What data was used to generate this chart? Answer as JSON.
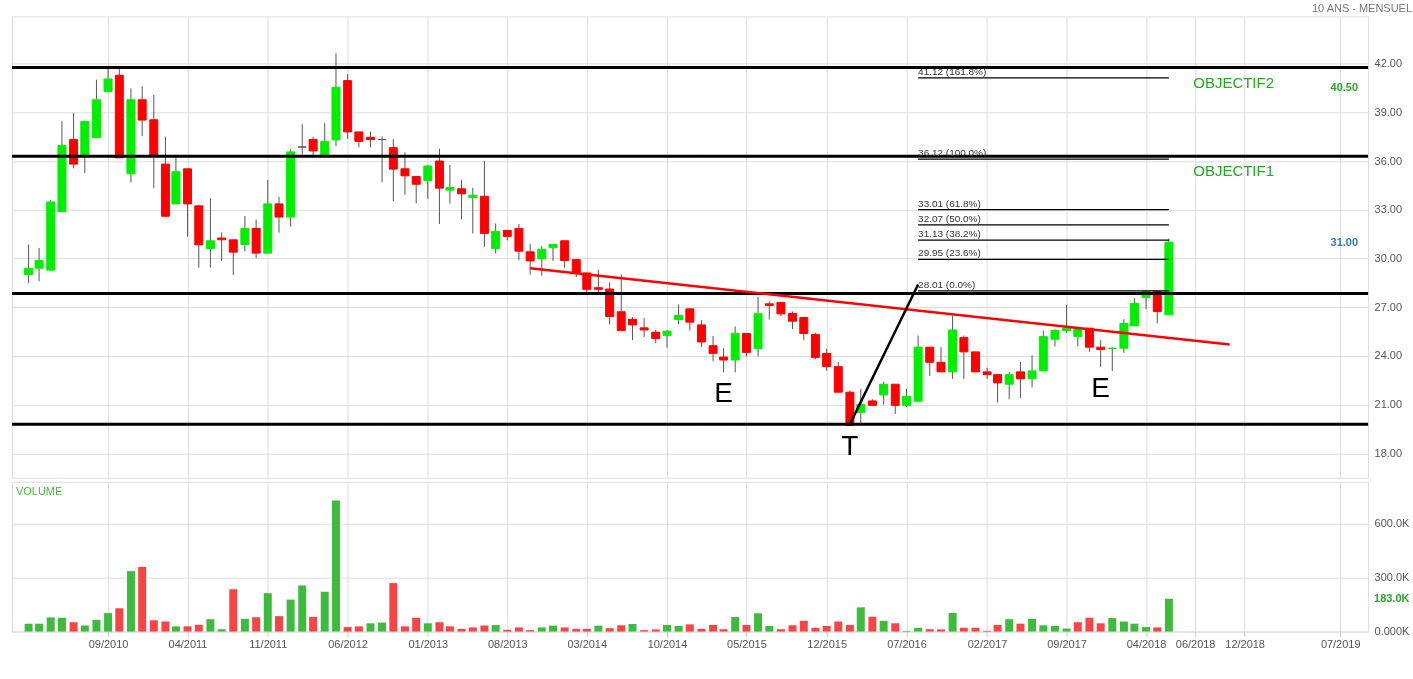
{
  "chart_data": [
    {
      "type": "candlestick",
      "subtitle": "10 ANS - MENSUEL",
      "x": [
        "2010-02",
        "2010-03",
        "2010-04",
        "2010-05",
        "2010-06",
        "2010-07",
        "2010-08",
        "2010-09",
        "2010-10",
        "2010-11",
        "2010-12",
        "2011-01",
        "2011-02",
        "2011-03",
        "2011-04",
        "2011-05",
        "2011-06",
        "2011-07",
        "2011-08",
        "2011-09",
        "2011-10",
        "2011-11",
        "2011-12",
        "2012-01",
        "2012-02",
        "2012-03",
        "2012-04",
        "2012-05",
        "2012-06",
        "2012-07",
        "2012-08",
        "2012-09",
        "2012-10",
        "2012-11",
        "2012-12",
        "2013-01",
        "2013-02",
        "2013-03",
        "2013-04",
        "2013-05",
        "2013-06",
        "2013-07",
        "2013-08",
        "2013-09",
        "2013-10",
        "2013-11",
        "2013-12",
        "2014-01",
        "2014-02",
        "2014-03",
        "2014-04",
        "2014-05",
        "2014-06",
        "2014-07",
        "2014-08",
        "2014-09",
        "2014-10",
        "2014-11",
        "2014-12",
        "2015-01",
        "2015-02",
        "2015-03",
        "2015-04",
        "2015-05",
        "2015-06",
        "2015-07",
        "2015-08",
        "2015-09",
        "2015-10",
        "2015-11",
        "2015-12",
        "2016-01",
        "2016-02",
        "2016-03",
        "2016-04",
        "2016-05",
        "2016-06",
        "2016-07",
        "2016-08",
        "2016-09",
        "2016-10",
        "2016-11",
        "2016-12",
        "2017-01",
        "2017-02",
        "2017-03",
        "2017-04",
        "2017-05",
        "2017-06",
        "2017-07",
        "2017-08",
        "2017-09",
        "2017-10",
        "2017-11",
        "2017-12",
        "2018-01",
        "2018-02",
        "2018-03",
        "2018-04",
        "2018-05",
        "2018-06"
      ],
      "ohlc": [
        [
          29.01,
          30.86,
          28.47,
          29.4
        ],
        [
          29.4,
          30.64,
          28.59,
          29.87
        ],
        [
          29.28,
          33.61,
          29.28,
          33.48
        ],
        [
          32.89,
          38.45,
          32.89,
          36.97
        ],
        [
          37.32,
          38.97,
          35.55,
          35.81
        ],
        [
          36.33,
          38.43,
          35.26,
          38.43
        ],
        [
          37.44,
          41.01,
          37.44,
          39.77
        ],
        [
          40.27,
          41.83,
          40.27,
          41.05
        ],
        [
          41.28,
          41.83,
          36.2,
          36.2
        ],
        [
          35.22,
          40.47,
          34.68,
          39.77
        ],
        [
          39.77,
          40.6,
          37.53,
          38.52
        ],
        [
          38.54,
          40.08,
          34.33,
          36.33
        ],
        [
          35.81,
          37.5,
          32.6,
          32.6
        ],
        [
          33.36,
          36.35,
          33.36,
          35.34
        ],
        [
          35.52,
          35.52,
          31.34,
          33.36
        ],
        [
          33.24,
          33.28,
          29.44,
          30.84
        ],
        [
          30.62,
          33.71,
          29.44,
          31.09
        ],
        [
          31.26,
          31.61,
          29.85,
          31.15
        ],
        [
          31.15,
          31.15,
          28.99,
          30.39
        ],
        [
          30.86,
          32.62,
          30.43,
          31.85
        ],
        [
          31.85,
          32.39,
          30.02,
          30.33
        ],
        [
          30.33,
          34.84,
          30.33,
          33.36
        ],
        [
          33.36,
          33.79,
          31.59,
          32.55
        ],
        [
          32.55,
          36.72,
          31.96,
          36.56
        ],
        [
          36.86,
          38.27,
          36.39,
          36.86
        ],
        [
          37.32,
          37.5,
          36.2,
          36.62
        ],
        [
          36.33,
          38.33,
          36.33,
          37.21
        ],
        [
          37.3,
          42.64,
          36.91,
          40.54
        ],
        [
          40.95,
          41.36,
          37.36,
          37.79
        ],
        [
          37.79,
          37.79,
          36.84,
          37.21
        ],
        [
          37.46,
          37.81,
          36.84,
          37.32
        ],
        [
          37.32,
          37.52,
          34.68,
          37.32
        ],
        [
          36.82,
          37.34,
          33.52,
          35.5
        ],
        [
          35.52,
          36.53,
          33.92,
          35.09
        ],
        [
          35.05,
          35.05,
          33.4,
          34.57
        ],
        [
          34.8,
          35.77,
          33.67,
          35.69
        ],
        [
          36.0,
          36.76,
          32.12,
          34.33
        ],
        [
          34.21,
          35.77,
          33.38,
          34.37
        ],
        [
          34.29,
          34.84,
          32.41,
          33.98
        ],
        [
          33.75,
          34.35,
          31.54,
          33.89
        ],
        [
          33.83,
          36.0,
          30.72,
          31.54
        ],
        [
          30.61,
          32.16,
          30.31,
          31.67
        ],
        [
          31.73,
          31.73,
          31.11,
          31.36
        ],
        [
          31.85,
          32.12,
          29.89,
          30.45
        ],
        [
          30.41,
          30.9,
          29.01,
          29.85
        ],
        [
          29.98,
          30.76,
          28.95,
          30.57
        ],
        [
          30.66,
          30.86,
          29.85,
          30.86
        ],
        [
          31.09,
          31.09,
          29.44,
          29.87
        ],
        [
          29.93,
          29.98,
          28.86,
          29.11
        ],
        [
          29.11,
          29.11,
          27.77,
          28.1
        ],
        [
          28.2,
          29.3,
          27.91,
          28.1
        ],
        [
          28.12,
          28.53,
          25.94,
          26.43
        ],
        [
          26.72,
          29.01,
          25.56,
          25.56
        ],
        [
          26.26,
          26.39,
          24.97,
          25.91
        ],
        [
          25.73,
          26.33,
          25.17,
          25.6
        ],
        [
          25.46,
          25.61,
          24.78,
          25.07
        ],
        [
          25.27,
          25.6,
          24.51,
          25.52
        ],
        [
          26.24,
          27.17,
          25.94,
          26.49
        ],
        [
          26.9,
          26.9,
          25.56,
          26.08
        ],
        [
          25.91,
          26.2,
          24.55,
          24.86
        ],
        [
          24.63,
          25.23,
          23.67,
          24.16
        ],
        [
          23.93,
          24.47,
          22.99,
          23.75
        ],
        [
          23.75,
          25.81,
          22.99,
          25.38
        ],
        [
          25.38,
          25.38,
          23.97,
          24.22
        ],
        [
          24.45,
          27.65,
          23.97,
          26.6
        ],
        [
          27.21,
          27.36,
          26.24,
          27.11
        ],
        [
          27.3,
          27.3,
          26.45,
          26.59
        ],
        [
          26.62,
          26.74,
          25.65,
          26.14
        ],
        [
          26.37,
          26.37,
          24.97,
          25.38
        ],
        [
          25.32,
          25.42,
          23.81,
          23.91
        ],
        [
          24.16,
          24.45,
          23.09,
          23.34
        ],
        [
          23.34,
          23.64,
          21.77,
          21.77
        ],
        [
          21.77,
          21.87,
          19.73,
          19.73
        ],
        [
          20.51,
          21.97,
          19.79,
          21.01
        ],
        [
          21.23,
          21.34,
          20.96,
          20.96
        ],
        [
          21.6,
          22.41,
          21.01,
          22.26
        ],
        [
          22.26,
          22.26,
          20.43,
          20.96
        ],
        [
          20.96,
          21.97,
          20.86,
          21.52
        ],
        [
          21.21,
          25.26,
          21.21,
          24.54
        ],
        [
          24.54,
          24.54,
          22.77,
          23.61
        ],
        [
          23.61,
          24.54,
          23.02,
          23.02
        ],
        [
          23.02,
          26.49,
          22.59,
          25.6
        ],
        [
          25.13,
          25.26,
          22.59,
          24.25
        ],
        [
          24.25,
          24.25,
          23.02,
          23.02
        ],
        [
          23.02,
          23.27,
          22.59,
          22.85
        ],
        [
          22.85,
          22.85,
          21.13,
          22.34
        ],
        [
          22.26,
          23.02,
          21.33,
          22.85
        ],
        [
          23.02,
          23.63,
          21.42,
          22.59
        ],
        [
          22.59,
          24.04,
          22.07,
          23.08
        ],
        [
          23.08,
          25.56,
          23.08,
          25.19
        ],
        [
          25.03,
          25.65,
          24.58,
          25.56
        ],
        [
          25.56,
          27.14,
          25.42,
          25.71
        ],
        [
          25.19,
          25.71,
          24.58,
          25.71
        ],
        [
          25.71,
          25.71,
          24.25,
          24.54
        ],
        [
          24.54,
          24.97,
          23.31,
          24.39
        ],
        [
          24.45,
          24.54,
          23.08,
          24.48
        ],
        [
          24.48,
          26.26,
          24.19,
          26.0
        ],
        [
          25.85,
          27.56,
          25.85,
          27.23
        ],
        [
          27.6,
          27.99,
          26.88,
          27.99
        ],
        [
          27.99,
          27.99,
          26.0,
          26.73
        ],
        [
          26.53,
          31.23,
          26.53,
          31.0
        ]
      ],
      "colors": [
        "#00ee00",
        "#00ee00",
        "#00ee00",
        "#00ee00",
        "#ff0000",
        "#00ee00",
        "#00ee00",
        "#00ee00",
        "#ff0000",
        "#00ee00",
        "#ff0000",
        "#ff0000",
        "#ff0000",
        "#00ee00",
        "#ff0000",
        "#ff0000",
        "#00ee00",
        "#ff0000",
        "#ff0000",
        "#00ee00",
        "#ff0000",
        "#00ee00",
        "#ff0000",
        "#00ee00",
        "#555555",
        "#ff0000",
        "#00ee00",
        "#00ee00",
        "#ff0000",
        "#ff0000",
        "#ff0000",
        "#555555",
        "#ff0000",
        "#ff0000",
        "#ff0000",
        "#00ee00",
        "#ff0000",
        "#00ee00",
        "#ff0000",
        "#00ee00",
        "#ff0000",
        "#00ee00",
        "#ff0000",
        "#ff0000",
        "#ff0000",
        "#00ee00",
        "#00ee00",
        "#ff0000",
        "#ff0000",
        "#ff0000",
        "#ff0000",
        "#ff0000",
        "#ff0000",
        "#ff0000",
        "#ff0000",
        "#ff0000",
        "#00ee00",
        "#00ee00",
        "#ff0000",
        "#ff0000",
        "#ff0000",
        "#ff0000",
        "#00ee00",
        "#ff0000",
        "#00ee00",
        "#ff0000",
        "#ff0000",
        "#ff0000",
        "#ff0000",
        "#ff0000",
        "#ff0000",
        "#ff0000",
        "#ff0000",
        "#00ee00",
        "#ff0000",
        "#00ee00",
        "#ff0000",
        "#00ee00",
        "#00ee00",
        "#ff0000",
        "#ff0000",
        "#00ee00",
        "#ff0000",
        "#ff0000",
        "#ff0000",
        "#ff0000",
        "#00ee00",
        "#ff0000",
        "#00ee00",
        "#00ee00",
        "#00ee00",
        "#00ee00",
        "#00ee00",
        "#ff0000",
        "#ff0000",
        "#00ee00",
        "#00ee00",
        "#00ee00",
        "#00ee00",
        "#ff0000",
        "#00ee00"
      ],
      "series": [
        {
          "type": "line",
          "name": "41.12 (161.8%)",
          "color": "#000000",
          "x": [
            "2016-08",
            "2018-06"
          ],
          "values": [
            41.12,
            41.12
          ]
        },
        {
          "type": "line",
          "name": "36.12 (100.0%)",
          "color": "#000000",
          "x": [
            "2016-08",
            "2018-06"
          ],
          "values": [
            36.12,
            36.12
          ]
        },
        {
          "type": "line",
          "name": "33.01 (61.8%)",
          "color": "#000000",
          "x": [
            "2016-08",
            "2018-06"
          ],
          "values": [
            33.01,
            33.01
          ]
        },
        {
          "type": "line",
          "name": "32.07 (50.0%)",
          "color": "#000000",
          "x": [
            "2016-08",
            "2018-06"
          ],
          "values": [
            32.07,
            32.07
          ]
        },
        {
          "type": "line",
          "name": "31.13 (38.2%)",
          "color": "#000000",
          "x": [
            "2016-08",
            "2018-06"
          ],
          "values": [
            31.13,
            31.13
          ]
        },
        {
          "type": "line",
          "name": "29.95 (23.6%)",
          "color": "#000000",
          "x": [
            "2016-08",
            "2018-06"
          ],
          "values": [
            29.95,
            29.95
          ]
        },
        {
          "type": "line",
          "name": "28.01 (0.0%)",
          "color": "#000000",
          "x": [
            "2016-08",
            "2018-06"
          ],
          "values": [
            28.01,
            28.01
          ]
        },
        {
          "type": "line",
          "color": "#ff0000",
          "x": [
            "2013-10",
            "2018-11-10"
          ],
          "values": [
            29.4,
            24.7
          ]
        },
        {
          "type": "line",
          "color": "#000000",
          "x": [
            "2016-02",
            "2016-08"
          ],
          "values": [
            19.8,
            28.4
          ]
        }
      ],
      "ref_lines": [
        {
          "axis": "y",
          "value": 41.75,
          "color": "#000000",
          "label": "OBJECTIF2"
        },
        {
          "axis": "y",
          "value": 36.3,
          "color": "#000000",
          "label": "OBJECTIF1"
        },
        {
          "axis": "y",
          "value": 27.85,
          "color": "#000000"
        },
        {
          "axis": "y",
          "value": 19.8,
          "color": "#000000"
        }
      ],
      "annotations": [
        {
          "text": "E",
          "x": "2015-03",
          "y": 22.99
        },
        {
          "text": "T",
          "x": "2016-02",
          "y": 19.73
        },
        {
          "text": "E",
          "x": "2017-12",
          "y": 23.31
        }
      ],
      "y2lim": [
        16.5,
        44.9
      ],
      "y2ticks": [
        {
          "value": 40.5,
          "label": "40.50"
        },
        {
          "value": 31.0,
          "label": "31.00"
        }
      ],
      "xlim": [
        "2010-01-01",
        "2019-11-01"
      ],
      "xticks": [
        "2010-09",
        "2011-04",
        "2011-11",
        "2012-06",
        "2013-01",
        "2013-08",
        "2014-03",
        "2014-10",
        "2015-05",
        "2015-12",
        "2016-07",
        "2017-02",
        "2017-09",
        "2018-04",
        "2018-08-10",
        "2018-12-20",
        "2019-09"
      ],
      "ylim": [
        16.5,
        44.9
      ],
      "yticks": [
        {
          "value": 18,
          "label": "18.00"
        },
        {
          "value": 21,
          "label": "21.00"
        },
        {
          "value": 24,
          "label": "24.00"
        },
        {
          "value": 27,
          "label": "27.00"
        },
        {
          "value": 30,
          "label": "30.00"
        },
        {
          "value": 33,
          "label": "33.00"
        },
        {
          "value": 36,
          "label": "36.00"
        },
        {
          "value": 39,
          "label": "39.00"
        },
        {
          "value": 42,
          "label": "42.00"
        }
      ],
      "tick_labels": "y",
      "grid": true
    },
    {
      "type": "bar",
      "title": "VOLUME",
      "x": [
        "2010-02",
        "2010-03",
        "2010-04",
        "2010-05",
        "2010-06",
        "2010-07",
        "2010-08",
        "2010-09",
        "2010-10",
        "2010-11",
        "2010-12",
        "2011-01",
        "2011-02",
        "2011-03",
        "2011-04",
        "2011-05",
        "2011-06",
        "2011-07",
        "2011-08",
        "2011-09",
        "2011-10",
        "2011-11",
        "2011-12",
        "2012-01",
        "2012-02",
        "2012-03",
        "2012-04",
        "2012-05",
        "2012-06",
        "2012-07",
        "2012-08",
        "2012-09",
        "2012-10",
        "2012-11",
        "2012-12",
        "2013-01",
        "2013-02",
        "2013-03",
        "2013-04",
        "2013-05",
        "2013-06",
        "2013-07",
        "2013-08",
        "2013-09",
        "2013-10",
        "2013-11",
        "2013-12",
        "2014-01",
        "2014-02",
        "2014-03",
        "2014-04",
        "2014-05",
        "2014-06",
        "2014-07",
        "2014-08",
        "2014-09",
        "2014-10",
        "2014-11",
        "2014-12",
        "2015-01",
        "2015-02",
        "2015-03",
        "2015-04",
        "2015-05",
        "2015-06",
        "2015-07",
        "2015-08",
        "2015-09",
        "2015-10",
        "2015-11",
        "2015-12",
        "2016-01",
        "2016-02",
        "2016-03",
        "2016-04",
        "2016-05",
        "2016-06",
        "2016-07",
        "2016-08",
        "2016-09",
        "2016-10",
        "2016-11",
        "2016-12",
        "2017-01",
        "2017-02",
        "2017-03",
        "2017-04",
        "2017-05",
        "2017-06",
        "2017-07",
        "2017-08",
        "2017-09",
        "2017-10",
        "2017-11",
        "2017-12",
        "2018-01",
        "2018-02",
        "2018-03",
        "2018-04",
        "2018-05",
        "2018-06"
      ],
      "values": [
        44,
        44,
        79,
        77,
        52,
        34,
        65,
        103,
        130,
        337,
        360,
        63,
        56,
        29,
        29,
        38,
        69,
        13,
        236,
        71,
        80,
        214,
        86,
        178,
        257,
        82,
        222,
        730,
        25,
        29,
        46,
        50,
        270,
        29,
        77,
        46,
        52,
        29,
        15,
        23,
        34,
        36,
        10,
        23,
        8,
        23,
        33,
        23,
        15,
        15,
        33,
        19,
        35,
        42,
        8,
        12,
        37,
        31,
        40,
        15,
        37,
        13,
        81,
        37,
        102,
        31,
        13,
        35,
        60,
        21,
        31,
        56,
        37,
        135,
        83,
        60,
        46,
        4,
        21,
        13,
        12,
        104,
        21,
        21,
        4,
        37,
        69,
        44,
        71,
        35,
        31,
        17,
        52,
        77,
        46,
        75,
        56,
        44,
        25,
        23,
        183
      ],
      "colors": [
        "#3dbb3d",
        "#3dbb3d",
        "#3dbb3d",
        "#3dbb3d",
        "#f84444",
        "#3dbb3d",
        "#3dbb3d",
        "#3dbb3d",
        "#f84444",
        "#3dbb3d",
        "#f84444",
        "#f84444",
        "#f84444",
        "#3dbb3d",
        "#f84444",
        "#f84444",
        "#3dbb3d",
        "#3dbb3d",
        "#f84444",
        "#3dbb3d",
        "#f84444",
        "#3dbb3d",
        "#f84444",
        "#3dbb3d",
        "#3dbb3d",
        "#f84444",
        "#3dbb3d",
        "#3dbb3d",
        "#f84444",
        "#f84444",
        "#3dbb3d",
        "#3dbb3d",
        "#f84444",
        "#f84444",
        "#f84444",
        "#3dbb3d",
        "#f84444",
        "#f84444",
        "#f84444",
        "#f84444",
        "#f84444",
        "#3dbb3d",
        "#f84444",
        "#f84444",
        "#f84444",
        "#3dbb3d",
        "#3dbb3d",
        "#f84444",
        "#f84444",
        "#f84444",
        "#3dbb3d",
        "#f84444",
        "#f84444",
        "#3dbb3d",
        "#f84444",
        "#f84444",
        "#3dbb3d",
        "#3dbb3d",
        "#f84444",
        "#f84444",
        "#f84444",
        "#f84444",
        "#3dbb3d",
        "#f84444",
        "#3dbb3d",
        "#3dbb3d",
        "#f84444",
        "#f84444",
        "#f84444",
        "#f84444",
        "#f84444",
        "#f84444",
        "#f84444",
        "#3dbb3d",
        "#f84444",
        "#3dbb3d",
        "#f84444",
        "#3dbb3d",
        "#3dbb3d",
        "#f84444",
        "#f84444",
        "#3dbb3d",
        "#f84444",
        "#f84444",
        "#f84444",
        "#f84444",
        "#3dbb3d",
        "#f84444",
        "#3dbb3d",
        "#3dbb3d",
        "#3dbb3d",
        "#3dbb3d",
        "#f84444",
        "#f84444",
        "#f84444",
        "#3dbb3d",
        "#3dbb3d",
        "#3dbb3d",
        "#3dbb3d",
        "#f84444",
        "#3dbb3d"
      ],
      "annotations": [
        "183.0K"
      ],
      "xlim": [
        "2010-01-01",
        "2019-11-01"
      ],
      "xticks": [
        {
          "value": "2010-09",
          "label": "09/2010"
        },
        {
          "value": "2011-04",
          "label": "04/2011"
        },
        {
          "value": "2011-11",
          "label": "11/2011"
        },
        {
          "value": "2012-06",
          "label": "06/2012"
        },
        {
          "value": "2013-01",
          "label": "01/2013"
        },
        {
          "value": "2013-08",
          "label": "08/2013"
        },
        {
          "value": "2014-03",
          "label": "03/2014"
        },
        {
          "value": "2014-10",
          "label": "10/2014"
        },
        {
          "value": "2015-05",
          "label": "05/2015"
        },
        {
          "value": "2015-12",
          "label": "12/2015"
        },
        {
          "value": "2016-07",
          "label": "07/2016"
        },
        {
          "value": "2017-02",
          "label": "02/2017"
        },
        {
          "value": "2017-09",
          "label": "09/2017"
        },
        {
          "value": "2018-04",
          "label": "04/2018"
        },
        {
          "value": "2018-08-10",
          "label": "06/2018"
        },
        {
          "value": "2018-12-20",
          "label": "12/2018"
        },
        {
          "value": "2019-09",
          "label": "07/2019"
        }
      ],
      "ylim": [
        0,
        835
      ],
      "yticks": [
        {
          "value": 0,
          "label": "0.000K"
        },
        {
          "value": 300,
          "label": "300.0K"
        },
        {
          "value": 600,
          "label": "600.0K"
        }
      ],
      "grid": true
    }
  ]
}
